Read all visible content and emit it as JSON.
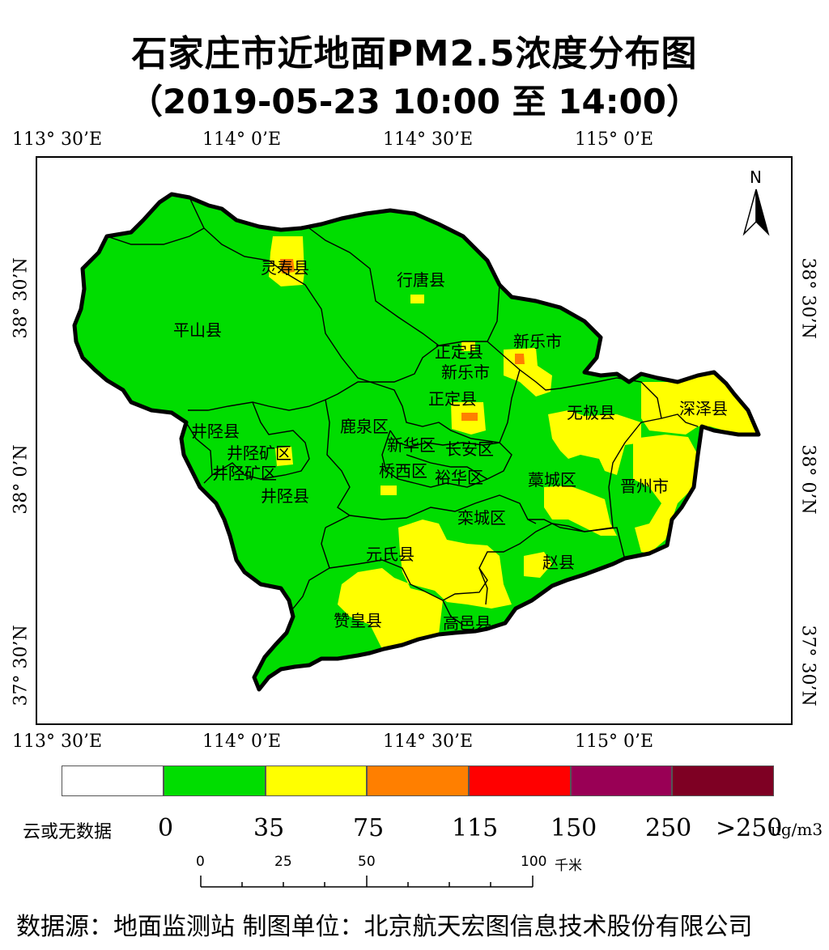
{
  "title": "石家庄市近地面PM2.5浓度分布图",
  "subtitle": "（2019-05-23 10:00 至 14:00）",
  "graticule": {
    "lon_labels": [
      "113° 30’E",
      "114° 0’E",
      "114° 30’E",
      "115° 0’E"
    ],
    "lat_labels": [
      "38° 30’N",
      "38° 0’N",
      "37° 30’N"
    ]
  },
  "north_arrow": "N",
  "districts": [
    "灵寿县",
    "行唐县",
    "平山县",
    "新乐市",
    "正定县",
    "新华区",
    "长安区",
    "无极县",
    "深泽县",
    "井陉县",
    "井陉矿区",
    "鹿泉区",
    "桥西区",
    "裕华区",
    "藁城区",
    "晋州市",
    "栾城区",
    "元氏县",
    "赵县",
    "赞皇县",
    "高邑县"
  ],
  "legend": {
    "no_data_label": "云或无数据",
    "unit": "ug/m3",
    "breaks": [
      "0",
      "35",
      "75",
      "115",
      "150",
      "250",
      ">250"
    ],
    "colors": [
      "#ffffff",
      "#00dd00",
      "#ffff00",
      "#ff7f00",
      "#ff0000",
      "#990055",
      "#7e0023"
    ]
  },
  "scale_bar": {
    "ticks": [
      "0",
      "25",
      "50",
      "100"
    ],
    "unit": "千米"
  },
  "source": "数据源：地面监测站  制图单位：北京航天宏图信息技术股份有限公司"
}
